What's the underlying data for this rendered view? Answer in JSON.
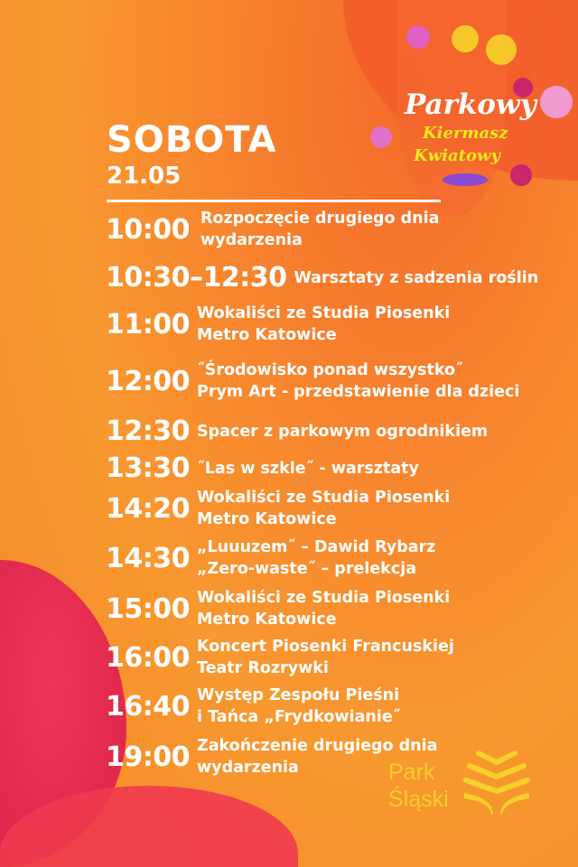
{
  "logo": {
    "line1": "Parkowy",
    "line2": "Kiermasz",
    "line3": "Kwiatowy"
  },
  "header": {
    "day": "SOBOTA",
    "date": "21.05"
  },
  "schedule": [
    {
      "time": "10:00",
      "desc": "Rozpoczęcie drugiego dnia\nwydarzenia"
    },
    {
      "time": "10:30–12:30",
      "desc": "Warsztaty z sadzenia roślin"
    },
    {
      "time": "11:00",
      "desc": "Wokaliści ze Studia Piosenki\nMetro Katowice"
    },
    {
      "time": "12:00",
      "desc": "˝Środowisko ponad wszystko˝\nPrym Art - przedstawienie dla dzieci"
    },
    {
      "time": "12:30",
      "desc": "Spacer z parkowym ogrodnikiem"
    },
    {
      "time": "13:30",
      "desc": "˝Las w szkle˝ - warsztaty"
    },
    {
      "time": "14:20",
      "desc": "Wokaliści ze Studia Piosenki\nMetro Katowice"
    },
    {
      "time": "14:30",
      "desc": "„Luuuzem˝ – Dawid Rybarz\n„Zero-waste˝ – prelekcja"
    },
    {
      "time": "15:00",
      "desc": "Wokaliści ze Studia Piosenki\nMetro Katowice"
    },
    {
      "time": "16:00",
      "desc": "Koncert Piosenki Francuskiej\nTeatr Rozrywki"
    },
    {
      "time": "16:40",
      "desc": "Występ Zespołu Pieśni\ni Tańca „Frydkowianie˝"
    },
    {
      "time": "19:00",
      "desc": "Zakończenie drugiego dnia\nwydarzenia"
    }
  ],
  "footer_logo": {
    "line1": "Park",
    "line2": "Śląski"
  },
  "colors": {
    "background": "#f8902e",
    "text": "#ffffff",
    "logo_yellow": "#f6d02a",
    "petal_pink": "#e8264f"
  }
}
